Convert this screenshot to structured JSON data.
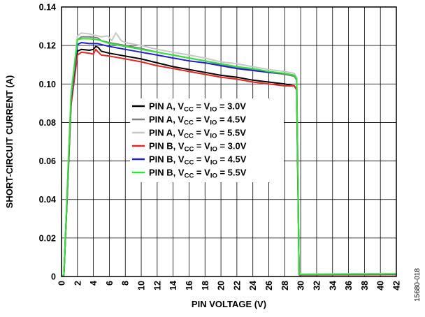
{
  "figure_id": "15680-018",
  "chart_data": {
    "type": "line",
    "title": "",
    "xlabel": "PIN VOLTAGE (V)",
    "ylabel": "SHORT-CIRCUIT CURRENT (A)",
    "xlim": [
      0,
      42
    ],
    "ylim": [
      0,
      0.14
    ],
    "xticks": [
      0,
      2,
      4,
      6,
      8,
      10,
      12,
      14,
      16,
      18,
      20,
      22,
      24,
      26,
      28,
      30,
      32,
      34,
      36,
      38,
      40,
      42
    ],
    "yticks": [
      0,
      0.02,
      0.04,
      0.06,
      0.08,
      0.1,
      0.12,
      0.14
    ],
    "ytick_labels": [
      "0",
      "0.02",
      "0.04",
      "0.06",
      "0.08",
      "0.10",
      "0.12",
      "0.14"
    ],
    "grid": true,
    "legend_position": "center",
    "series": [
      {
        "name": "PIN A, VCC = VIO = 3.0V",
        "label_parts": [
          "PIN A, V",
          "CC",
          " = V",
          "IO",
          " = 3.0V"
        ],
        "color": "#000000",
        "x": [
          0,
          0.3,
          1.2,
          2.0,
          2.5,
          3.5,
          4.0,
          4.3,
          4.6,
          5.0,
          6.0,
          8.0,
          10.0,
          12.0,
          14.0,
          16.0,
          18.0,
          20.0,
          22.0,
          24.0,
          26.0,
          28.0,
          29.2,
          29.5,
          29.8,
          42.0
        ],
        "y": [
          0,
          0.0008,
          0.09,
          0.117,
          0.118,
          0.1175,
          0.118,
          0.1195,
          0.119,
          0.117,
          0.116,
          0.1145,
          0.113,
          0.111,
          0.109,
          0.1075,
          0.106,
          0.1045,
          0.1035,
          0.102,
          0.101,
          0.1,
          0.099,
          0.097,
          0.0009,
          0.0009
        ]
      },
      {
        "name": "PIN A, VCC = VIO = 4.5V",
        "label_parts": [
          "PIN A, V",
          "CC",
          " = V",
          "IO",
          " = 4.5V"
        ],
        "color": "#808080",
        "x": [
          0,
          0.3,
          1.2,
          2.0,
          2.5,
          3.5,
          4.5,
          5.0,
          6.0,
          8.0,
          10.0,
          12.0,
          14.0,
          16.0,
          18.0,
          20.0,
          22.0,
          24.0,
          26.0,
          28.0,
          29.2,
          29.5,
          29.8,
          42.0
        ],
        "y": [
          0,
          0.0009,
          0.094,
          0.123,
          0.1245,
          0.1245,
          0.124,
          0.1225,
          0.1215,
          0.12,
          0.1185,
          0.1165,
          0.115,
          0.1135,
          0.112,
          0.11,
          0.1085,
          0.1075,
          0.106,
          0.105,
          0.104,
          0.102,
          0.0011,
          0.0012
        ]
      },
      {
        "name": "PIN A, VCC = VIO = 5.5V",
        "label_parts": [
          "PIN A, V",
          "CC",
          " = V",
          "IO",
          " = 5.5V"
        ],
        "color": "#c8c8c8",
        "x": [
          0,
          0.3,
          1.2,
          2.0,
          2.5,
          3.5,
          5.0,
          5.8,
          6.3,
          6.8,
          7.0,
          7.5,
          8.0,
          10.0,
          12.0,
          14.0,
          16.0,
          18.0,
          20.0,
          22.0,
          24.0,
          26.0,
          28.0,
          29.2,
          29.5,
          29.8,
          42.0
        ],
        "y": [
          0,
          0.001,
          0.096,
          0.125,
          0.1265,
          0.126,
          0.1245,
          0.125,
          0.1225,
          0.1265,
          0.1255,
          0.1225,
          0.1215,
          0.12,
          0.118,
          0.1165,
          0.115,
          0.1135,
          0.1115,
          0.1105,
          0.109,
          0.1075,
          0.1065,
          0.1055,
          0.1035,
          0.0013,
          0.0015
        ]
      },
      {
        "name": "PIN B, VCC = VIO = 3.0V",
        "label_parts": [
          "PIN B, V",
          "CC",
          " = V",
          "IO",
          " = 3.0V"
        ],
        "color": "#e8251f",
        "x": [
          0,
          0.3,
          1.2,
          2.0,
          2.5,
          3.5,
          4.0,
          4.3,
          4.6,
          5.0,
          6.0,
          8.0,
          10.0,
          12.0,
          14.0,
          16.0,
          18.0,
          20.0,
          22.0,
          24.0,
          26.0,
          28.0,
          29.2,
          29.5,
          29.8,
          42.0
        ],
        "y": [
          0,
          0.0007,
          0.089,
          0.115,
          0.1165,
          0.116,
          0.1155,
          0.118,
          0.1165,
          0.115,
          0.1145,
          0.113,
          0.1115,
          0.1095,
          0.108,
          0.1065,
          0.105,
          0.1035,
          0.1025,
          0.101,
          0.1,
          0.099,
          0.099,
          0.097,
          0.0008,
          0.0009
        ]
      },
      {
        "name": "PIN B, VCC = VIO = 4.5V",
        "label_parts": [
          "PIN B, V",
          "CC",
          " = V",
          "IO",
          " = 4.5V"
        ],
        "color": "#1f1fd6",
        "x": [
          0,
          0.3,
          1.2,
          2.0,
          2.5,
          3.5,
          4.5,
          5.0,
          6.0,
          8.0,
          10.0,
          12.0,
          14.0,
          16.0,
          18.0,
          20.0,
          22.0,
          24.0,
          26.0,
          28.0,
          29.2,
          29.5,
          29.8,
          42.0
        ],
        "y": [
          0,
          0.0008,
          0.092,
          0.1205,
          0.1215,
          0.121,
          0.121,
          0.1205,
          0.1195,
          0.118,
          0.1165,
          0.115,
          0.1135,
          0.112,
          0.111,
          0.1095,
          0.108,
          0.107,
          0.106,
          0.1055,
          0.1045,
          0.1025,
          0.001,
          0.0012
        ]
      },
      {
        "name": "PIN B, VCC = VIO = 5.5V",
        "label_parts": [
          "PIN B, V",
          "CC",
          " = V",
          "IO",
          " = 5.5V"
        ],
        "color": "#2ee62e",
        "x": [
          0,
          0.3,
          1.2,
          2.0,
          2.5,
          3.5,
          4.5,
          5.0,
          6.0,
          8.0,
          10.0,
          12.0,
          14.0,
          16.0,
          18.0,
          20.0,
          22.0,
          24.0,
          26.0,
          28.0,
          29.2,
          29.5,
          29.8,
          42.0
        ],
        "y": [
          0,
          0.0009,
          0.094,
          0.123,
          0.1235,
          0.1235,
          0.123,
          0.1225,
          0.121,
          0.1195,
          0.118,
          0.1165,
          0.115,
          0.1135,
          0.112,
          0.1105,
          0.109,
          0.108,
          0.1065,
          0.1055,
          0.1045,
          0.1025,
          0.0011,
          0.0013
        ]
      }
    ]
  }
}
